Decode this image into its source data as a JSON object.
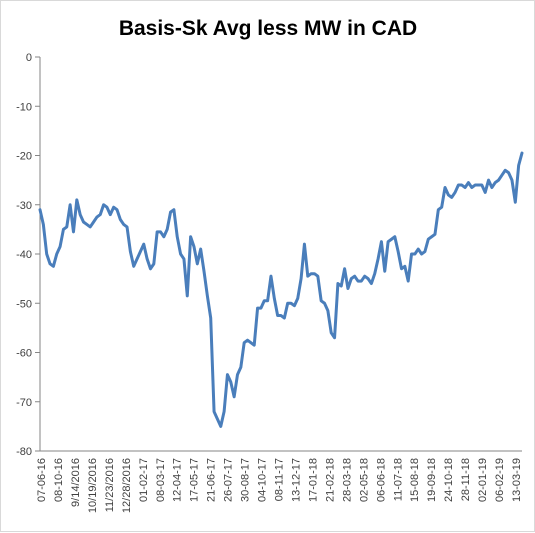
{
  "chart_data": {
    "type": "line",
    "title": "Basis-Sk Avg less MW in CAD",
    "xlabel": "",
    "ylabel": "",
    "ylim": [
      -80,
      0
    ],
    "yticks": [
      0,
      -10,
      -20,
      -30,
      -40,
      -50,
      -60,
      -70,
      -80
    ],
    "grid": false,
    "legend": "none",
    "line_color": "#4a7ebb",
    "x_labels": [
      "07-06-16",
      "08-10-16",
      "9/14/2016",
      "10/19/2016",
      "11/23/2016",
      "12/28/2016",
      "01-02-17",
      "08-03-17",
      "12-04-17",
      "17-05-17",
      "21-06-17",
      "26-07-17",
      "30-08-17",
      "04-10-17",
      "08-11-17",
      "13-12-17",
      "17-01-18",
      "21-02-18",
      "28-03-18",
      "02-05-18",
      "06-06-18",
      "11-07-18",
      "15-08-18",
      "19-09-18",
      "24-10-18",
      "28-11-18",
      "02-01-19",
      "06-02-19",
      "13-03-19"
    ],
    "series": [
      {
        "values": [
          -31,
          -34,
          -40,
          -42,
          -42.5,
          -40,
          -38.5,
          -35,
          -34.5,
          -30,
          -35.5,
          -29,
          -32,
          -33.5,
          -34,
          -34.5,
          -33.5,
          -32.5,
          -32,
          -30,
          -30.5,
          -32,
          -30.5,
          -31,
          -33,
          -34,
          -34.5,
          -39.5,
          -42.5,
          -41,
          -39.5,
          -38,
          -41,
          -43,
          -42,
          -35.5,
          -35.5,
          -36.5,
          -35,
          -31.5,
          -31,
          -36.5,
          -40,
          -41,
          -48.5,
          -36.5,
          -38.5,
          -42,
          -39,
          -43.5,
          -48.5,
          -53,
          -72,
          -73.5,
          -75,
          -72,
          -64.5,
          -66,
          -69,
          -64.5,
          -63,
          -58,
          -57.5,
          -58,
          -58.5,
          -51,
          -51,
          -49.5,
          -49.5,
          -44.5,
          -49,
          -52.5,
          -52.5,
          -53,
          -50,
          -50,
          -50.5,
          -49,
          -45,
          -38,
          -44.5,
          -44,
          -44,
          -44.5,
          -49.5,
          -50,
          -51.5,
          -56,
          -57,
          -46,
          -46.5,
          -43,
          -47,
          -45,
          -44.5,
          -45.5,
          -45.5,
          -44.5,
          -45,
          -46,
          -44,
          -41,
          -37.5,
          -43.5,
          -37.5,
          -37,
          -36.5,
          -39.5,
          -43,
          -42.5,
          -45.5,
          -40,
          -40,
          -39,
          -40,
          -39.5,
          -37,
          -36.5,
          -36,
          -31,
          -30.5,
          -26.5,
          -28,
          -28.5,
          -27.5,
          -26,
          -26,
          -26.5,
          -25.5,
          -26.5,
          -26,
          -26,
          -26,
          -27.5,
          -25,
          -26.5,
          -25.5,
          -25,
          -24,
          -23,
          -23.5,
          -25,
          -29.5,
          -22,
          -19.5
        ]
      }
    ]
  }
}
